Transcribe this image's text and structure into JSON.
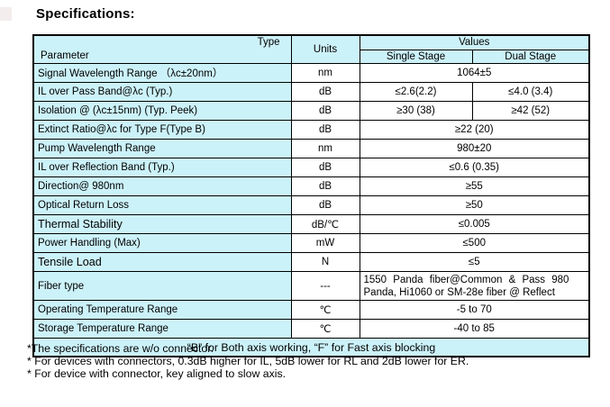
{
  "page": {
    "title": "Specifications:"
  },
  "colors": {
    "cell_cyan": "#ccf2f9",
    "border": "#000000",
    "text": "#000000"
  },
  "table": {
    "header": {
      "type_label": "Type",
      "param_label": "Parameter",
      "units_label": "Units",
      "values_label": "Values",
      "single_stage_label": "Single Stage",
      "dual_stage_label": "Dual Stage"
    },
    "rows": [
      {
        "param": "Signal Wavelength Range （λc±20nm）",
        "units": "nm",
        "value": "1064±5"
      },
      {
        "param": "IL over Pass Band@λc (Typ.)",
        "units": "dB",
        "single": "≤2.6(2.2)",
        "dual": "≤4.0 (3.4)"
      },
      {
        "param": "Isolation @ (λc±15nm) (Typ. Peek)",
        "units": "dB",
        "single": "≥30 (38)",
        "dual": "≥42 (52)"
      },
      {
        "param": "Extinct Ratio@λc for Type F(Type B)",
        "units": "dB",
        "value": "≥22 (20)"
      },
      {
        "param": "Pump Wavelength Range",
        "units": "nm",
        "value": "980±20"
      },
      {
        "param": "IL over Reflection Band (Typ.)",
        "units": "dB",
        "value": "≤0.6 (0.35)"
      },
      {
        "param": "Direction@ 980nm",
        "units": "dB",
        "value": "≥55"
      },
      {
        "param": "Optical Return Loss",
        "units": "dB",
        "value": "≥50"
      },
      {
        "param": "Thermal Stability",
        "units": "dB/℃",
        "value": "≤0.005",
        "emphasis": true
      },
      {
        "param": "Power Handling (Max)",
        "units": "mW",
        "value": "≤500"
      },
      {
        "param": "Tensile Load",
        "units": "N",
        "value": "≤5",
        "emphasis": true
      },
      {
        "param": "Fiber type",
        "units": "---",
        "value_lines": [
          "1550 Panda fiber@Common & Pass 980",
          "Panda, Hi1060 or SM-28e fiber @ Reflect"
        ]
      },
      {
        "param": "Operating Temperature Range",
        "units": "℃",
        "value": "-5 to 70"
      },
      {
        "param": "Storage Temperature Range",
        "units": "℃",
        "value": "-40 to 85"
      }
    ],
    "footer_note": "“B” for Both axis working, “F” for Fast axis blocking"
  },
  "footnotes": [
    "*The specifications are w/o connector.",
    "* For devices with connectors, 0.3dB higher for IL, 5dB lower for RL and 2dB lower for ER.",
    "* For device with connector, key aligned to slow axis."
  ]
}
